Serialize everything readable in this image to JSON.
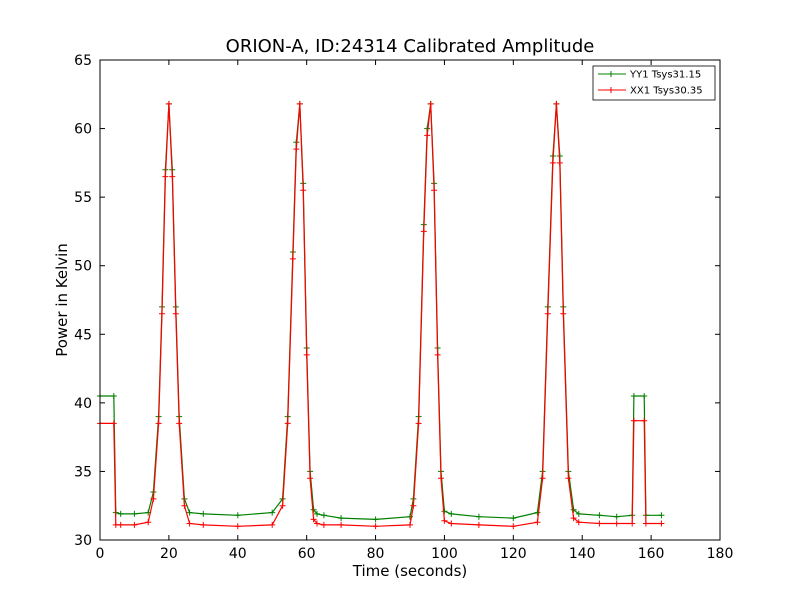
{
  "chart_data": {
    "type": "line",
    "title": "ORION-A, ID:24314 Calibrated Amplitude",
    "xlabel": "Time (seconds)",
    "ylabel": "Power in Kelvin",
    "xlim": [
      0,
      180
    ],
    "ylim": [
      30,
      65
    ],
    "xticks": [
      "0",
      "20",
      "40",
      "60",
      "80",
      "100",
      "120",
      "140",
      "160",
      "180"
    ],
    "yticks": [
      "30",
      "35",
      "40",
      "45",
      "50",
      "55",
      "60",
      "65"
    ],
    "grid": false,
    "legend_position": "top-right",
    "x": [
      0,
      4,
      4.6,
      6,
      10,
      14,
      15.5,
      17,
      18,
      19,
      20,
      21,
      22,
      23,
      24.5,
      26,
      30,
      40,
      50,
      53,
      54.5,
      56,
      57,
      58,
      59,
      60,
      61,
      62,
      63,
      65,
      70,
      80,
      90,
      91,
      92.5,
      94,
      95,
      96,
      97,
      98,
      99,
      100,
      102,
      110,
      120,
      127,
      128.5,
      130,
      131.5,
      132.5,
      133.5,
      134.5,
      136,
      137.5,
      139,
      145,
      150,
      154.5,
      155,
      158,
      158.5,
      163
    ],
    "series": [
      {
        "name": "YY1 Tsys31.15",
        "color": "#008000",
        "values": [
          40.5,
          40.5,
          32,
          31.9,
          31.9,
          32,
          33.5,
          39,
          47,
          57,
          61.8,
          57,
          47,
          39,
          33,
          32,
          31.9,
          31.8,
          32,
          33,
          39,
          51,
          59,
          61.8,
          56,
          44,
          35,
          32.2,
          31.9,
          31.8,
          31.6,
          31.5,
          31.7,
          33,
          39,
          53,
          60,
          61.8,
          56,
          44,
          35,
          32.1,
          31.9,
          31.7,
          31.6,
          32,
          35,
          47,
          58,
          61.8,
          58,
          47,
          35,
          32.2,
          31.9,
          31.8,
          31.7,
          31.8,
          40.5,
          40.5,
          31.8,
          31.8
        ]
      },
      {
        "name": "XX1 Tsys30.35",
        "color": "#ff0000",
        "values": [
          38.5,
          38.5,
          31.1,
          31.1,
          31.1,
          31.3,
          33,
          38.5,
          46.5,
          56.5,
          61.8,
          56.5,
          46.5,
          38.5,
          32.5,
          31.2,
          31.1,
          31,
          31.1,
          32.5,
          38.5,
          50.5,
          58.5,
          61.8,
          55.5,
          43.5,
          34.5,
          31.5,
          31.2,
          31.1,
          31.1,
          31,
          31.1,
          32.5,
          38.5,
          52.5,
          59.5,
          61.8,
          55.5,
          43.5,
          34.5,
          31.4,
          31.2,
          31.1,
          31,
          31.3,
          34.5,
          46.5,
          57.5,
          61.8,
          57.5,
          46.5,
          34.5,
          31.6,
          31.3,
          31.2,
          31.2,
          31.2,
          38.7,
          38.7,
          31.2,
          31.2
        ]
      }
    ]
  }
}
